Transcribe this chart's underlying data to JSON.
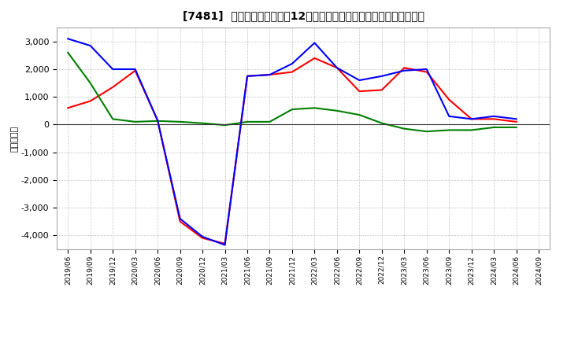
{
  "title": "[7481]  キャッシュフローの12か月移動合計の対前年同期増減額の推移",
  "ylabel": "（百万円）",
  "background_color": "#ffffff",
  "plot_bg_color": "#ffffff",
  "grid_color": "#aaaaaa",
  "x_labels": [
    "2019/06",
    "2019/09",
    "2019/12",
    "2020/03",
    "2020/06",
    "2020/09",
    "2020/12",
    "2021/03",
    "2021/06",
    "2021/09",
    "2021/12",
    "2022/03",
    "2022/06",
    "2022/09",
    "2022/12",
    "2023/03",
    "2023/06",
    "2023/09",
    "2023/12",
    "2024/03",
    "2024/06",
    "2024/09"
  ],
  "operating_cf": [
    600,
    850,
    1350,
    1950,
    150,
    -3500,
    -4100,
    -4300,
    1750,
    1800,
    1900,
    2400,
    2050,
    1200,
    1250,
    2050,
    1900,
    900,
    200,
    200,
    100,
    null
  ],
  "investing_cf": [
    2600,
    1500,
    200,
    100,
    130,
    100,
    50,
    -20,
    100,
    100,
    550,
    600,
    500,
    350,
    50,
    -150,
    -250,
    -200,
    -200,
    -100,
    -100,
    null
  ],
  "free_cf": [
    3100,
    2850,
    2000,
    2000,
    150,
    -3400,
    -4050,
    -4350,
    1750,
    1800,
    2200,
    2950,
    2050,
    1600,
    1750,
    1950,
    2000,
    300,
    200,
    300,
    200,
    null
  ],
  "operating_color": "#ff0000",
  "investing_color": "#008000",
  "free_color": "#0000ff",
  "ylim": [
    -4500,
    3500
  ],
  "yticks": [
    -4000,
    -3000,
    -2000,
    -1000,
    0,
    1000,
    2000,
    3000
  ]
}
